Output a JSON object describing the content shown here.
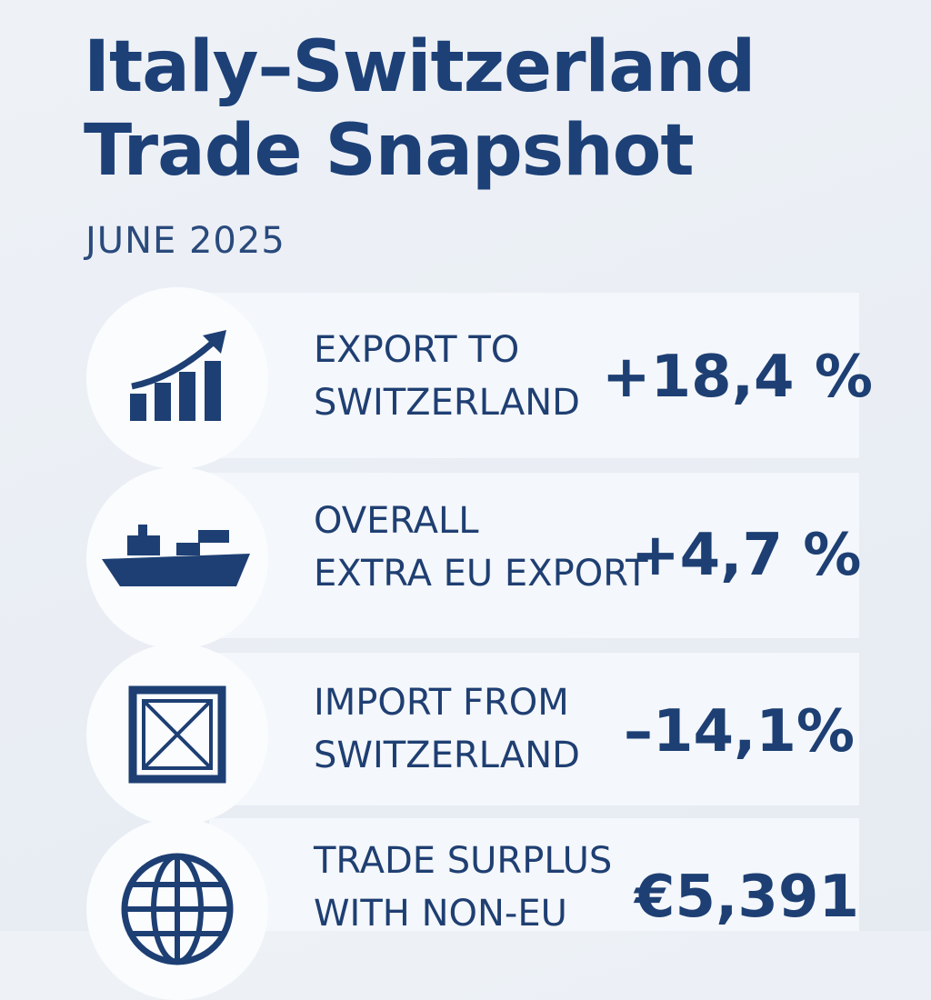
{
  "header": {
    "title": [
      "Italy–Switzerland",
      "Trade Snapshot"
    ],
    "subtitle": "JUNE 2025"
  },
  "items": [
    {
      "label": [
        "EXPORT TO",
        "SWITZERLAND"
      ],
      "value": "+18,4 %"
    },
    {
      "label": [
        "OVERALL",
        "EXTRA EU EXPORT"
      ],
      "value": "+4,7 %"
    },
    {
      "label": [
        "IMPORT FROM",
        "SWITZERLAND"
      ],
      "value": "–14,1%"
    },
    {
      "label": [
        "TRADE SURPLUS",
        "WITH NON-EU"
      ],
      "value": "€5,391"
    }
  ]
}
